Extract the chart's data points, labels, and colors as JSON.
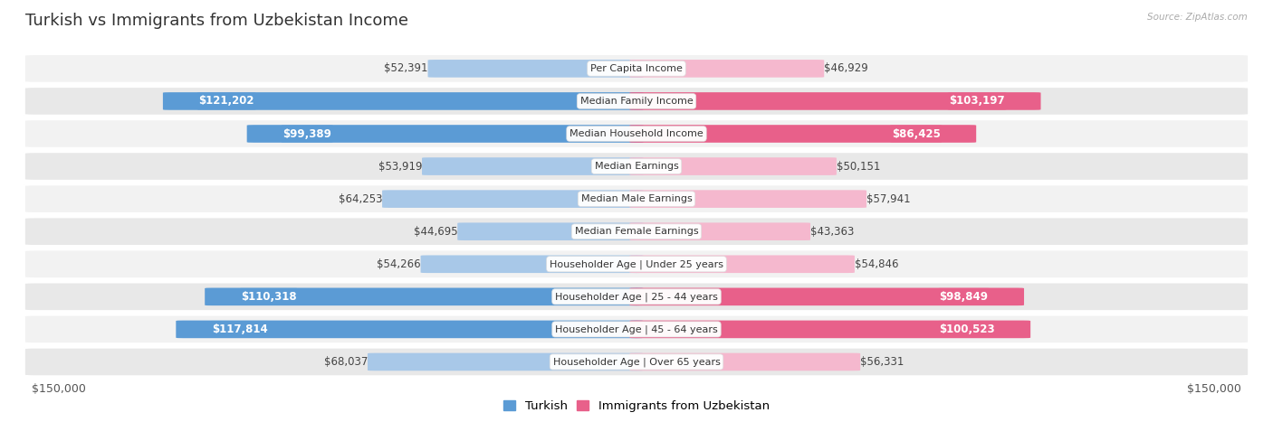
{
  "title": "Turkish vs Immigrants from Uzbekistan Income",
  "source": "Source: ZipAtlas.com",
  "categories": [
    "Per Capita Income",
    "Median Family Income",
    "Median Household Income",
    "Median Earnings",
    "Median Male Earnings",
    "Median Female Earnings",
    "Householder Age | Under 25 years",
    "Householder Age | 25 - 44 years",
    "Householder Age | 45 - 64 years",
    "Householder Age | Over 65 years"
  ],
  "turkish_values": [
    52391,
    121202,
    99389,
    53919,
    64253,
    44695,
    54266,
    110318,
    117814,
    68037
  ],
  "uzbekistan_values": [
    46929,
    103197,
    86425,
    50151,
    57941,
    43363,
    54846,
    98849,
    100523,
    56331
  ],
  "turkish_labels": [
    "$52,391",
    "$121,202",
    "$99,389",
    "$53,919",
    "$64,253",
    "$44,695",
    "$54,266",
    "$110,318",
    "$117,814",
    "$68,037"
  ],
  "uzbekistan_labels": [
    "$46,929",
    "$103,197",
    "$86,425",
    "$50,151",
    "$57,941",
    "$43,363",
    "$54,846",
    "$98,849",
    "$100,523",
    "$56,331"
  ],
  "max_value": 150000,
  "turkish_color_light": "#a8c8e8",
  "turkish_color_dark": "#5b9bd5",
  "uzbekistan_color_light": "#f5b8ce",
  "uzbekistan_color_dark": "#e8608a",
  "label_inside_threshold": 75000,
  "background_color": "#ffffff",
  "row_bg_light": "#f2f2f2",
  "row_bg_dark": "#e8e8e8",
  "bar_height": 0.52,
  "title_fontsize": 13,
  "label_fontsize": 8.5,
  "axis_label_fontsize": 9,
  "legend_fontsize": 9.5,
  "x_axis_label_left": "$150,000",
  "x_axis_label_right": "$150,000"
}
